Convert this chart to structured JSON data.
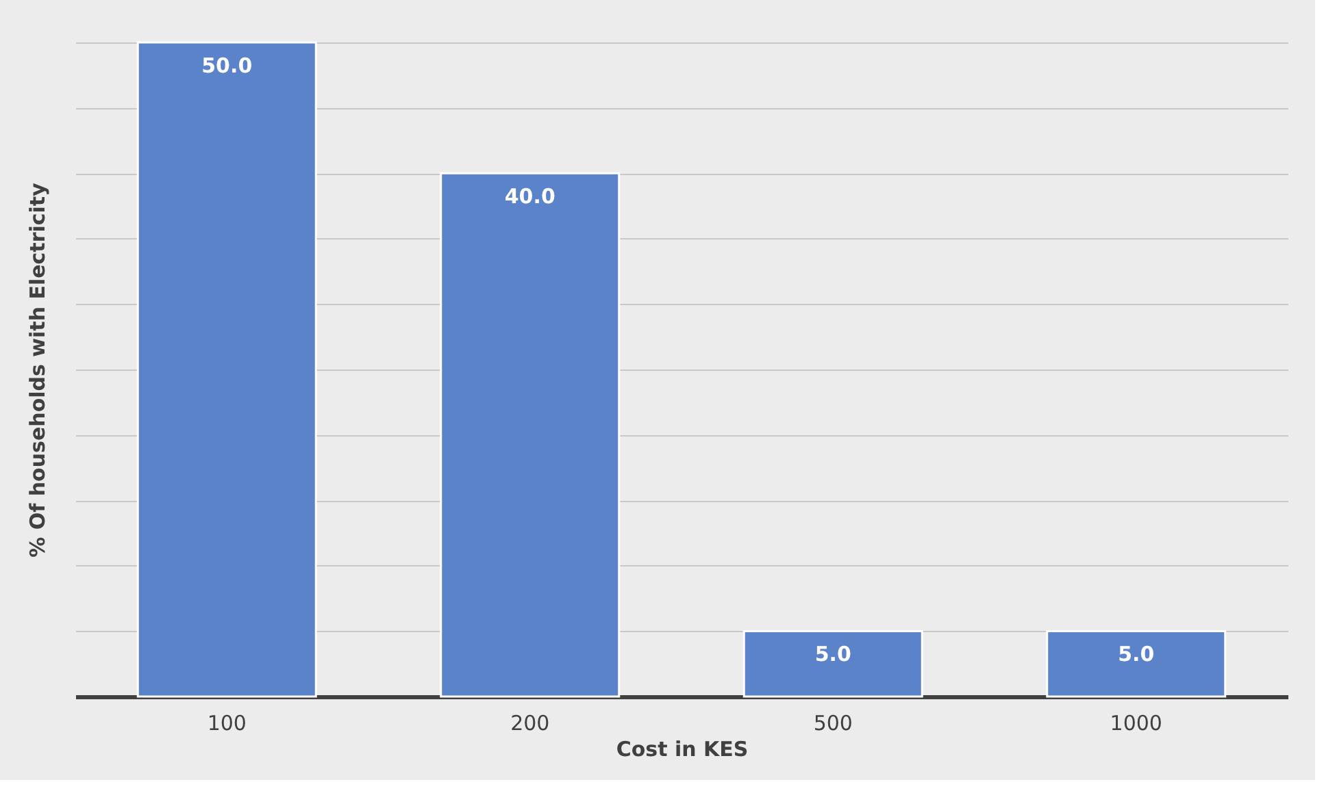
{
  "chart_data": {
    "type": "bar",
    "xlabel": "Cost in KES",
    "ylabel": "% Of households with Electricity",
    "categories": [
      "100",
      "200",
      "500",
      "1000"
    ],
    "values": [
      50.0,
      40.0,
      5.0,
      5.0
    ],
    "color": "#5b83c9",
    "value_labels": [
      "50.0",
      "40.0",
      "5.0",
      "5.0"
    ],
    "grid": "y",
    "tick_labels": "x"
  }
}
